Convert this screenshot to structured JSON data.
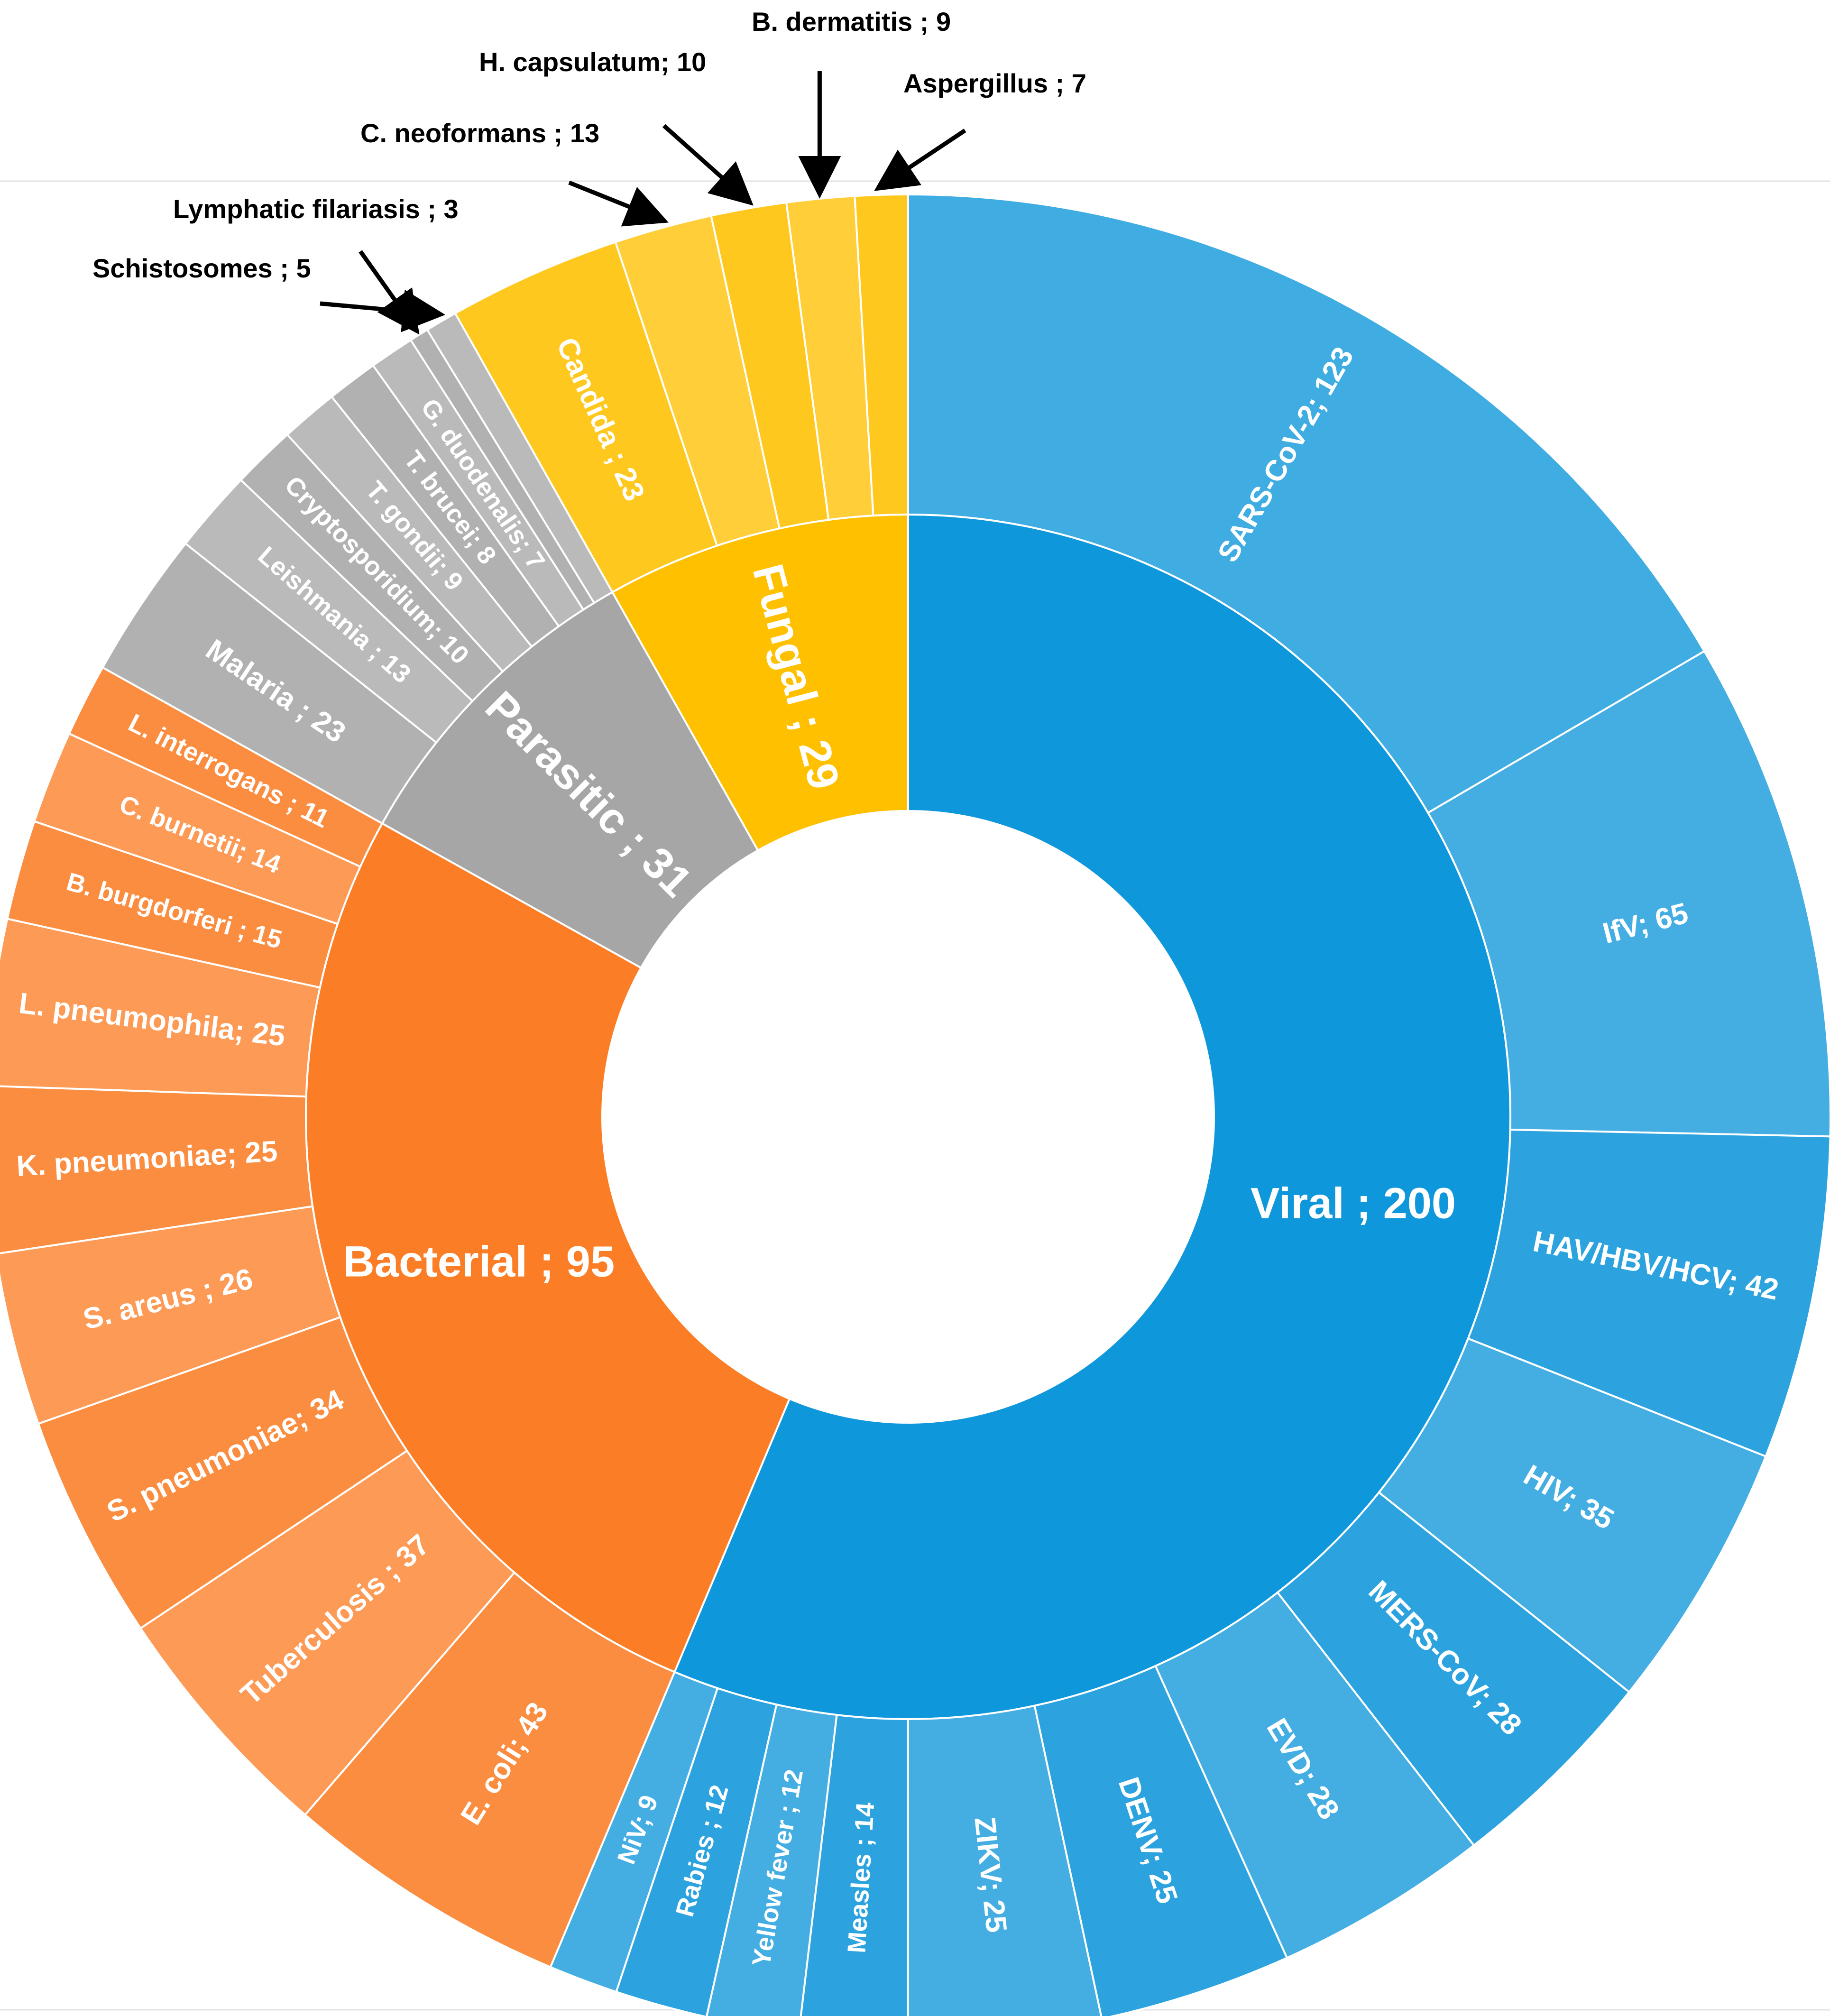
{
  "chart_data": {
    "type": "sunburst",
    "title": "",
    "categories": [
      {
        "name": "Viral",
        "label": "Viral ; 200",
        "value": 200,
        "color": "#0f97db",
        "children": [
          {
            "name": "SARS-CoV-2",
            "label": "SARS-CoV-2; 123",
            "value": 123
          },
          {
            "name": "IfV",
            "label": "IfV; 65",
            "value": 65
          },
          {
            "name": "HAV/HBV/HCV",
            "label": "HAV/HBV/HCV; 42",
            "value": 42
          },
          {
            "name": "HIV",
            "label": "HIV; 35",
            "value": 35
          },
          {
            "name": "MERS-CoV",
            "label": "MERS-CoV; 28",
            "value": 28
          },
          {
            "name": "EVD",
            "label": "EVD; 28",
            "value": 28
          },
          {
            "name": "DENV",
            "label": "DENV; 25",
            "value": 25
          },
          {
            "name": "ZIKV",
            "label": "ZIKV; 25",
            "value": 25
          },
          {
            "name": "Measles",
            "label": "Measles ; 14",
            "value": 14
          },
          {
            "name": "Yellow fever",
            "label": "Yellow fever ; 12",
            "value": 12
          },
          {
            "name": "Rabies",
            "label": "Rabies ; 12",
            "value": 12
          },
          {
            "name": "NiV",
            "label": "NiV; 9",
            "value": 9
          }
        ]
      },
      {
        "name": "Bacterial",
        "label": "Bacterial ; 95",
        "value": 95,
        "color": "#fb7d26",
        "children": [
          {
            "name": "E. coli",
            "label": "E. coli; 43",
            "value": 43
          },
          {
            "name": "Tuberculosis",
            "label": "Tuberculosis ; 37",
            "value": 37
          },
          {
            "name": "S. pneumoniae",
            "label": "S. pneumoniae; 34",
            "value": 34
          },
          {
            "name": "S. areus",
            "label": "S. areus ; 26",
            "value": 26
          },
          {
            "name": "K. pneumoniae",
            "label": "K. pneumoniae; 25",
            "value": 25
          },
          {
            "name": "L. pneumophila",
            "label": "L. pneumophila; 25",
            "value": 25
          },
          {
            "name": "B. burgdorferi",
            "label": "B. burgdorferi ; 15",
            "value": 15
          },
          {
            "name": "C. burnetii",
            "label": "C. burnetii; 14",
            "value": 14
          },
          {
            "name": "L. interrogans",
            "label": "L. interrogans ; 11",
            "value": 11
          }
        ]
      },
      {
        "name": "Parasitic",
        "label": "Parasitic ; 31",
        "value": 31,
        "color": "#a6a6a6",
        "children": [
          {
            "name": "Malaria",
            "label": "Malaria ; 23",
            "value": 23
          },
          {
            "name": "Leishmania",
            "label": "Leishmania ; 13",
            "value": 13
          },
          {
            "name": "Cryptosporidium",
            "label": "Cryptosporidium; 10",
            "value": 10
          },
          {
            "name": "T. gondii",
            "label": "T. gondii; 9",
            "value": 9
          },
          {
            "name": "T. brucei",
            "label": "T. brucei; 8",
            "value": 8
          },
          {
            "name": "G. duodenalis",
            "label": "G. duodenalis; 7",
            "value": 7
          },
          {
            "name": "Lymphatic filariasis",
            "label": "Lymphatic filariasis ; 3",
            "value": 3,
            "callout": true
          },
          {
            "name": "Schistosomes",
            "label": "Schistosomes ; 5",
            "value": 5,
            "callout": true
          }
        ]
      },
      {
        "name": "Fungal",
        "label": "Fungal ; 29",
        "value": 29,
        "color": "#ffc000",
        "children": [
          {
            "name": "Candida",
            "label": "Candida ; 23",
            "value": 23
          },
          {
            "name": "C. neoformans",
            "label": "C. neoformans ; 13",
            "value": 13,
            "callout": true
          },
          {
            "name": "H. capsulatum",
            "label": "H. capsulatum; 10",
            "value": 10,
            "callout": true
          },
          {
            "name": "B. dermatitis",
            "label": "B. dermatitis ; 9",
            "value": 9,
            "callout": true
          },
          {
            "name": "Aspergillus",
            "label": "Aspergillus ; 7",
            "value": 7,
            "callout": true
          }
        ]
      }
    ],
    "legend": "none"
  }
}
